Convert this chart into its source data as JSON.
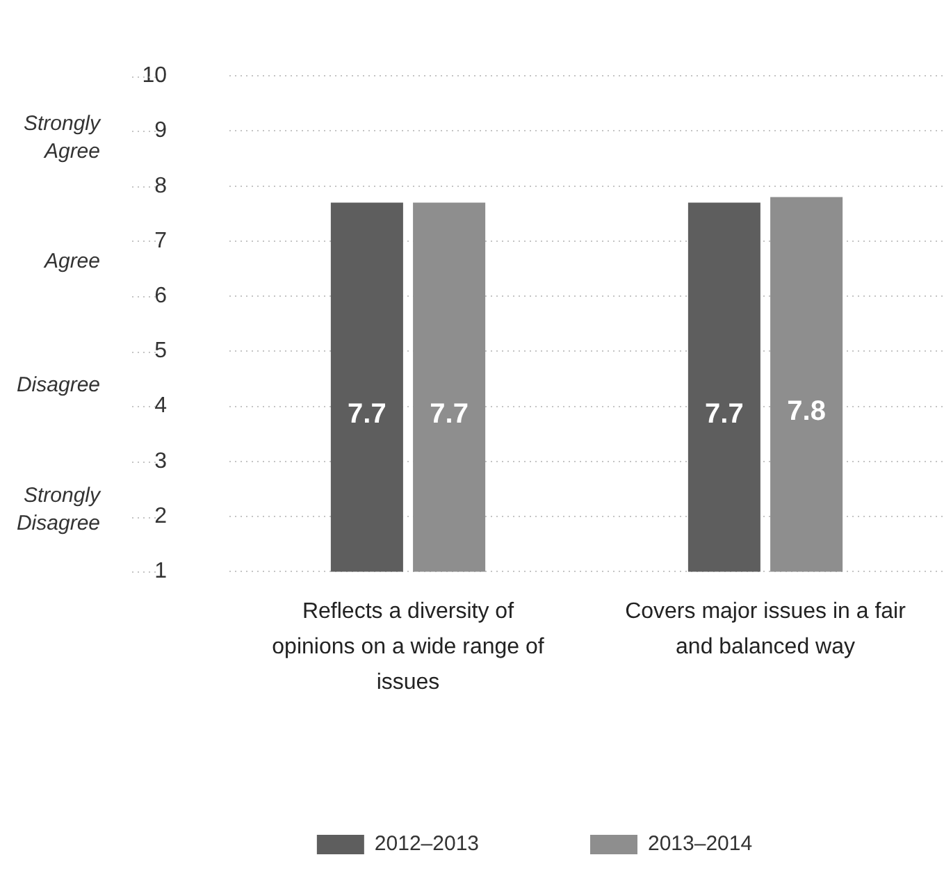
{
  "chart_data": {
    "type": "bar",
    "categories": [
      "Reflects a diversity of opinions on a wide range of issues",
      "Covers major issues in a fair and balanced way"
    ],
    "series": [
      {
        "name": "2012–2013",
        "color": "#5e5e5e",
        "values": [
          7.7,
          7.7
        ]
      },
      {
        "name": "2013–2014",
        "color": "#8e8e8e",
        "values": [
          7.7,
          7.8
        ]
      }
    ],
    "ylim": [
      1,
      10
    ],
    "yticks": [
      1,
      2,
      3,
      4,
      5,
      6,
      7,
      8,
      9,
      10
    ],
    "grid": "y",
    "legend": "bottom",
    "data_labels": true,
    "annotations": [
      "Strongly Agree",
      "Agree",
      "Disagree",
      "Strongly Disagree"
    ]
  }
}
